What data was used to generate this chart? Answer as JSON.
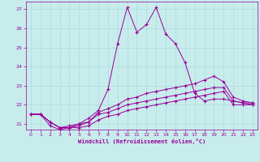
{
  "xlabel": "Windchill (Refroidissement éolien,°C)",
  "background_color": "#c8ecec",
  "line_color": "#990099",
  "grid_color": "#aadddd",
  "ylim": [
    20.7,
    27.4
  ],
  "xlim": [
    -0.5,
    23.5
  ],
  "yticks": [
    21,
    22,
    23,
    24,
    25,
    26,
    27
  ],
  "xticks": [
    0,
    1,
    2,
    3,
    4,
    5,
    6,
    7,
    8,
    9,
    10,
    11,
    12,
    13,
    14,
    15,
    16,
    17,
    18,
    19,
    20,
    21,
    22,
    23
  ],
  "curves": [
    {
      "x": [
        0,
        1,
        2,
        3,
        4,
        5,
        6,
        7,
        8,
        9,
        10,
        11,
        12,
        13,
        14,
        15,
        16,
        17,
        18,
        19,
        20,
        21,
        22,
        23
      ],
      "y": [
        21.5,
        21.5,
        21.1,
        20.8,
        20.8,
        21.0,
        21.3,
        21.7,
        22.8,
        25.2,
        27.1,
        25.8,
        26.2,
        27.1,
        25.7,
        25.2,
        24.2,
        22.6,
        22.2,
        22.3,
        22.3,
        22.2,
        22.1,
        22.1
      ]
    },
    {
      "x": [
        0,
        1,
        2,
        3,
        4,
        5,
        6,
        7,
        8,
        9,
        10,
        11,
        12,
        13,
        14,
        15,
        16,
        17,
        18,
        19,
        20,
        21,
        22,
        23
      ],
      "y": [
        21.5,
        21.5,
        21.1,
        20.8,
        20.8,
        20.9,
        21.1,
        21.6,
        21.8,
        22.0,
        22.3,
        22.4,
        22.6,
        22.7,
        22.8,
        22.9,
        23.0,
        23.1,
        23.3,
        23.5,
        23.2,
        22.4,
        22.2,
        22.1
      ]
    },
    {
      "x": [
        0,
        1,
        2,
        3,
        4,
        5,
        6,
        7,
        8,
        9,
        10,
        11,
        12,
        13,
        14,
        15,
        16,
        17,
        18,
        19,
        20,
        21,
        22,
        23
      ],
      "y": [
        21.5,
        21.5,
        21.1,
        20.8,
        20.9,
        21.0,
        21.1,
        21.5,
        21.6,
        21.8,
        22.0,
        22.1,
        22.2,
        22.3,
        22.4,
        22.5,
        22.6,
        22.7,
        22.8,
        22.9,
        22.9,
        22.2,
        22.1,
        22.0
      ]
    },
    {
      "x": [
        0,
        1,
        2,
        3,
        4,
        5,
        6,
        7,
        8,
        9,
        10,
        11,
        12,
        13,
        14,
        15,
        16,
        17,
        18,
        19,
        20,
        21,
        22,
        23
      ],
      "y": [
        21.5,
        21.5,
        20.9,
        20.7,
        20.8,
        20.8,
        20.9,
        21.2,
        21.4,
        21.5,
        21.7,
        21.8,
        21.9,
        22.0,
        22.1,
        22.2,
        22.3,
        22.4,
        22.5,
        22.6,
        22.7,
        22.0,
        22.0,
        22.0
      ]
    }
  ]
}
